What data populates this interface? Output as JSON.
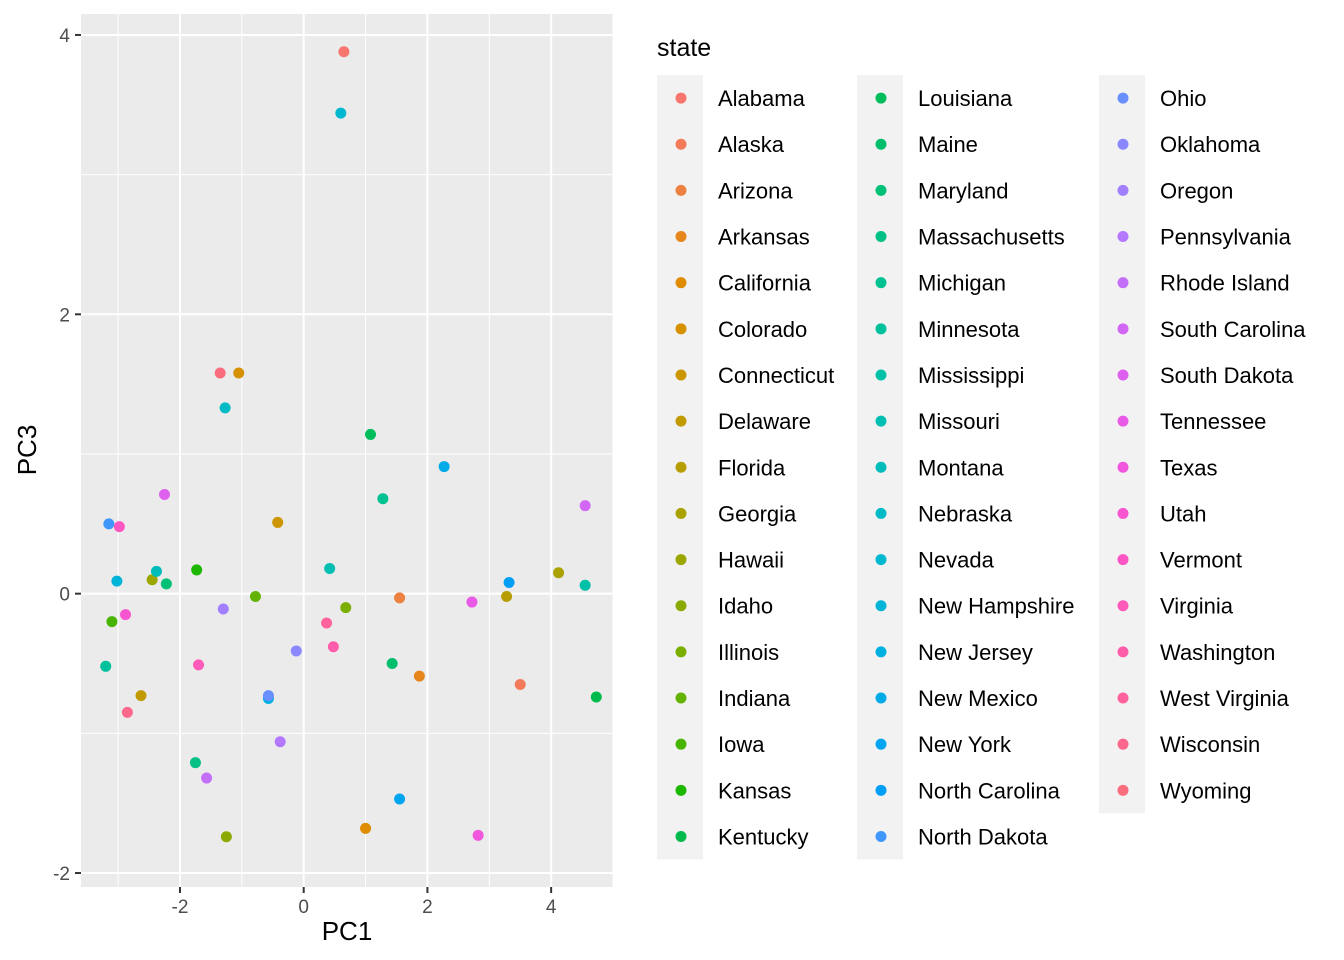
{
  "chart_data": {
    "type": "scatter",
    "xlabel": "PC1",
    "ylabel": "PC3",
    "xlim": [
      -3.6,
      5.0
    ],
    "ylim": [
      -2.1,
      4.15
    ],
    "x_ticks": [
      -2,
      0,
      2,
      4
    ],
    "y_ticks": [
      -2,
      0,
      2,
      4
    ],
    "grid": true,
    "legend": {
      "title": "state",
      "placement": "right",
      "columns": 3
    },
    "points": [
      {
        "state": "Alabama",
        "color": "#F8766D",
        "x": 0.65,
        "y": 3.88
      },
      {
        "state": "Alaska",
        "color": "#F37B59",
        "x": 3.5,
        "y": -0.65
      },
      {
        "state": "Arizona",
        "color": "#ED8141",
        "x": 1.55,
        "y": -0.03
      },
      {
        "state": "Arkansas",
        "color": "#E7861B",
        "x": 1.87,
        "y": -0.59
      },
      {
        "state": "California",
        "color": "#DF8C00",
        "x": 1.0,
        "y": -1.68
      },
      {
        "state": "Colorado",
        "color": "#D69100",
        "x": -1.05,
        "y": 1.58
      },
      {
        "state": "Connecticut",
        "color": "#CC9600",
        "x": -0.42,
        "y": 0.51
      },
      {
        "state": "Delaware",
        "color": "#C19A00",
        "x": -2.63,
        "y": -0.73
      },
      {
        "state": "Florida",
        "color": "#B69E00",
        "x": 3.28,
        "y": -0.02
      },
      {
        "state": "Georgia",
        "color": "#A9A200",
        "x": 4.12,
        "y": 0.15
      },
      {
        "state": "Hawaii",
        "color": "#9BA600",
        "x": -2.45,
        "y": 0.1
      },
      {
        "state": "Idaho",
        "color": "#8BAA00",
        "x": -1.25,
        "y": -1.74
      },
      {
        "state": "Illinois",
        "color": "#7AAE00",
        "x": 0.68,
        "y": -0.1
      },
      {
        "state": "Indiana",
        "color": "#64B200",
        "x": -0.78,
        "y": -0.02
      },
      {
        "state": "Iowa",
        "color": "#47B500",
        "x": -3.1,
        "y": -0.2
      },
      {
        "state": "Kansas",
        "color": "#1CB800",
        "x": -1.73,
        "y": 0.17
      },
      {
        "state": "Kentucky",
        "color": "#00BB4B",
        "x": 4.73,
        "y": -0.74
      },
      {
        "state": "Louisiana",
        "color": "#00BD5C",
        "x": 1.08,
        "y": 1.14
      },
      {
        "state": "Maine",
        "color": "#00BE6B",
        "x": 1.43,
        "y": -0.5
      },
      {
        "state": "Maryland",
        "color": "#00C078",
        "x": -2.22,
        "y": 0.07
      },
      {
        "state": "Massachusetts",
        "color": "#00C085",
        "x": -1.75,
        "y": -1.21
      },
      {
        "state": "Michigan",
        "color": "#00C191",
        "x": 1.28,
        "y": 0.68
      },
      {
        "state": "Minnesota",
        "color": "#00C19C",
        "x": -3.2,
        "y": -0.52
      },
      {
        "state": "Mississippi",
        "color": "#00C0A7",
        "x": 4.55,
        "y": 0.06
      },
      {
        "state": "Missouri",
        "color": "#00BFB2",
        "x": 0.42,
        "y": 0.18
      },
      {
        "state": "Montana",
        "color": "#00BDBC",
        "x": -2.38,
        "y": 0.16
      },
      {
        "state": "Nebraska",
        "color": "#00BBC6",
        "x": -1.27,
        "y": 1.33
      },
      {
        "state": "Nevada",
        "color": "#00B8CF",
        "x": 0.6,
        "y": 3.44
      },
      {
        "state": "New Hampshire",
        "color": "#00B4D8",
        "x": -3.02,
        "y": 0.09
      },
      {
        "state": "New Jersey",
        "color": "#00B0E0",
        "x": -0.57,
        "y": -0.75
      },
      {
        "state": "New Mexico",
        "color": "#00ABE8",
        "x": 2.27,
        "y": 0.91
      },
      {
        "state": "New York",
        "color": "#00A5EF",
        "x": 1.55,
        "y": -1.47
      },
      {
        "state": "North Carolina",
        "color": "#009FF6",
        "x": 3.32,
        "y": 0.08
      },
      {
        "state": "North Dakota",
        "color": "#3F97FB",
        "x": -3.15,
        "y": 0.5
      },
      {
        "state": "Ohio",
        "color": "#6A8FFF",
        "x": -0.57,
        "y": -0.73
      },
      {
        "state": "Oklahoma",
        "color": "#8A87FF",
        "x": -0.12,
        "y": -0.41
      },
      {
        "state": "Oregon",
        "color": "#A27FFF",
        "x": -1.3,
        "y": -0.11
      },
      {
        "state": "Pennsylvania",
        "color": "#B477FF",
        "x": -0.38,
        "y": -1.06
      },
      {
        "state": "Rhode Island",
        "color": "#C46FFA",
        "x": -1.57,
        "y": -1.32
      },
      {
        "state": "South Carolina",
        "color": "#D267F5",
        "x": 4.55,
        "y": 0.63
      },
      {
        "state": "South Dakota",
        "color": "#DE61EE",
        "x": -2.25,
        "y": 0.71
      },
      {
        "state": "Tennessee",
        "color": "#E95BE6",
        "x": 2.72,
        "y": -0.06
      },
      {
        "state": "Texas",
        "color": "#F157DC",
        "x": 2.82,
        "y": -1.73
      },
      {
        "state": "Utah",
        "color": "#F855D1",
        "x": -2.88,
        "y": -0.15
      },
      {
        "state": "Vermont",
        "color": "#FC56C5",
        "x": -2.98,
        "y": 0.48
      },
      {
        "state": "Virginia",
        "color": "#FF59B9",
        "x": -1.7,
        "y": -0.51
      },
      {
        "state": "Washington",
        "color": "#FF5DAB",
        "x": 0.48,
        "y": -0.38
      },
      {
        "state": "West Virginia",
        "color": "#FF629C",
        "x": 0.37,
        "y": -0.21
      },
      {
        "state": "Wisconsin",
        "color": "#FC678C",
        "x": -2.85,
        "y": -0.85
      },
      {
        "state": "Wyoming",
        "color": "#F96D7D",
        "x": -1.35,
        "y": 1.58
      }
    ]
  }
}
